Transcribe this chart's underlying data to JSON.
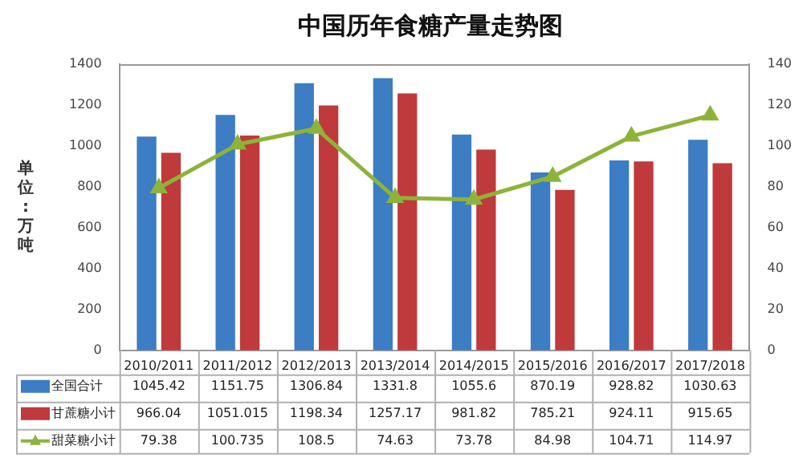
{
  "chart_data": {
    "type": "bar",
    "title": "中国历年食糖产量走势图",
    "ylabel": "单位:万吨",
    "categories": [
      "2010/2011",
      "2011/2012",
      "2012/2013",
      "2013/2014",
      "2014/2015",
      "2015/2016",
      "2016/2017",
      "2017/2018"
    ],
    "series": [
      {
        "name": "全国合计",
        "color": "#3c7dc4",
        "values": [
          1045.42,
          1151.75,
          1306.84,
          1331.8,
          1055.6,
          870.19,
          928.82,
          1030.63
        ]
      },
      {
        "name": "甘蔗糖小计",
        "color": "#c0393b",
        "values": [
          966.04,
          1051.015,
          1198.34,
          1257.17,
          981.82,
          785.21,
          924.11,
          915.65
        ]
      },
      {
        "name": "甜菜糖小计",
        "type": "line",
        "axis": "y2",
        "color": "#8db33a",
        "marker": "triangle",
        "line_style": "solid",
        "values": [
          79.38,
          100.735,
          108.5,
          74.63,
          73.78,
          84.98,
          104.71,
          114.97
        ]
      }
    ],
    "ylim": [
      0,
      1400
    ],
    "yticks": [
      0,
      200,
      400,
      600,
      800,
      1000,
      1200,
      1400
    ],
    "y2lim": [
      0,
      140
    ],
    "y2ticks": [
      0,
      20,
      40,
      60,
      80,
      100,
      120,
      140
    ],
    "data_labels": true,
    "legend": "bottom",
    "grid": false
  }
}
